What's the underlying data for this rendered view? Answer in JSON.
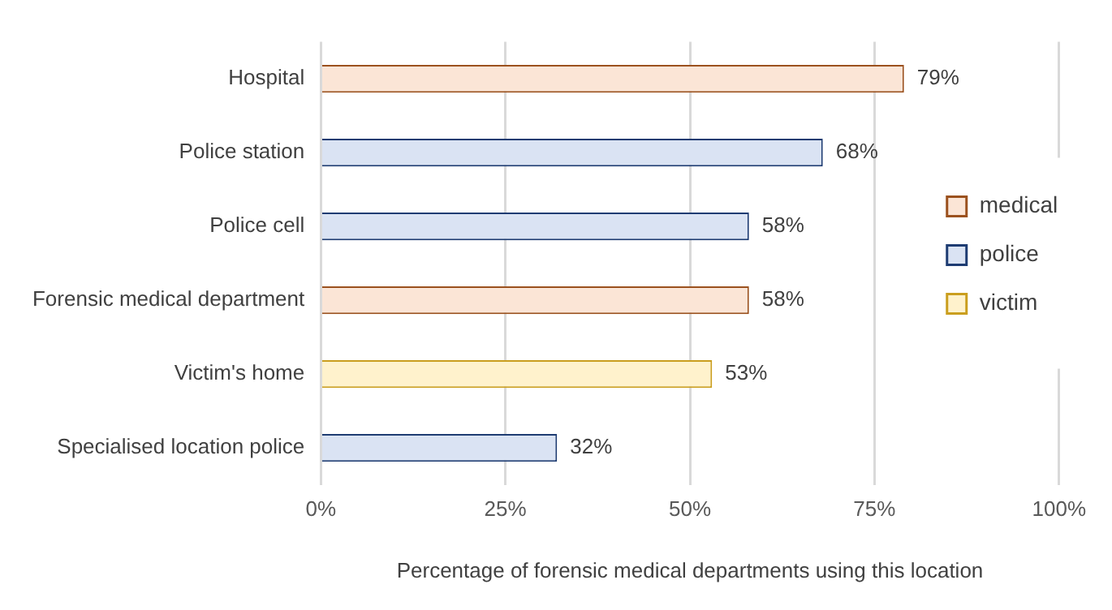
{
  "chart_data": {
    "type": "bar",
    "orientation": "horizontal",
    "stacked": true,
    "categories": [
      "Hospital",
      "Police station",
      "Police cell",
      "Forensic medical department",
      "Victim's home",
      "Specialised location police"
    ],
    "series": [
      {
        "name": "medical",
        "color": "#fbe5d6",
        "values": [
          79,
          null,
          null,
          58,
          null,
          null
        ],
        "value_labels": [
          "79%",
          null,
          null,
          "58%",
          null,
          null
        ]
      },
      {
        "name": "police",
        "color": "#dae3f3",
        "values": [
          null,
          68,
          58,
          null,
          null,
          32
        ],
        "value_labels": [
          null,
          "68%",
          "58%",
          null,
          null,
          "32%"
        ]
      },
      {
        "name": "victim",
        "color": "#fff2cc",
        "values": [
          null,
          null,
          null,
          null,
          53,
          null
        ],
        "value_labels": [
          null,
          null,
          null,
          null,
          "53%",
          null
        ]
      }
    ],
    "xlim": [
      0,
      100
    ],
    "xticks": [
      {
        "value": 0,
        "label": "0%"
      },
      {
        "value": 25,
        "label": "25%"
      },
      {
        "value": 50,
        "label": "50%"
      },
      {
        "value": 75,
        "label": "75%"
      },
      {
        "value": 100,
        "label": "100%"
      }
    ],
    "xlabel": "Percentage of forensic medical departments using this location",
    "grid": "x",
    "legend": "right"
  }
}
